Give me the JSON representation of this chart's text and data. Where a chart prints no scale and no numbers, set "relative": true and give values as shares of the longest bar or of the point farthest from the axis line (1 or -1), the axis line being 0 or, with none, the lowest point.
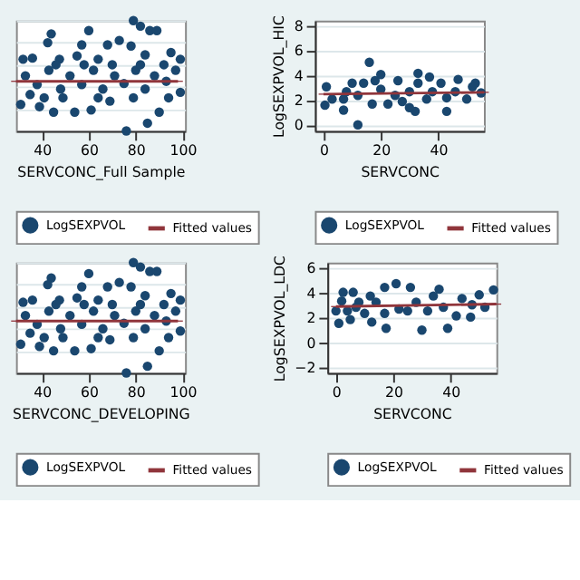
{
  "chart_data": [
    {
      "type": "scatter",
      "xlabel": "SERVCONC_Full Sample",
      "relative": true,
      "xlim": [
        29,
        101
      ],
      "xticks": [
        40,
        60,
        80,
        100
      ],
      "tick_labels": "x",
      "grid": "y",
      "legend": "bottom",
      "series": [
        {
          "name": "LogSEXPVOL",
          "color": "#1a476f",
          "marker": "circle",
          "x": [
            79,
            82,
            86,
            89,
            60,
            44,
            42.5,
            57,
            68,
            73,
            78,
            95,
            99,
            55,
            64,
            32,
            36,
            47.5,
            84,
            92,
            54,
            45,
            39,
            76,
            85,
            90,
            61,
            69,
            31,
            99,
            79,
            49,
            33,
            38,
            43,
            48,
            52,
            57,
            62,
            66,
            71,
            75,
            80,
            84,
            88,
            93,
            97,
            35,
            46,
            58,
            70,
            82,
            94,
            64,
            41
          ],
          "values": [
            1.0,
            0.95,
            0.91,
            0.91,
            0.91,
            0.88,
            0.8,
            0.78,
            0.78,
            0.82,
            0.77,
            0.71,
            0.65,
            0.68,
            0.65,
            0.65,
            0.66,
            0.65,
            0.69,
            0.6,
            0.17,
            0.17,
            0.22,
            0,
            0.07,
            0.17,
            0.19,
            0.27,
            0.24,
            0.35,
            0.3,
            0.3,
            0.5,
            0.42,
            0.55,
            0.38,
            0.5,
            0.42,
            0.55,
            0.38,
            0.5,
            0.43,
            0.55,
            0.38,
            0.5,
            0.45,
            0.55,
            0.33,
            0.6,
            0.6,
            0.6,
            0.6,
            0.3,
            0.3,
            0.3
          ]
        },
        {
          "name": "Fitted values",
          "type": "line",
          "color": "#90353b",
          "x": [
            29,
            98
          ],
          "values": [
            0.45,
            0.45
          ]
        }
      ]
    },
    {
      "type": "scatter",
      "xlabel": "SERVCONC",
      "ylabel": "LogSEXPVOL_HIC",
      "xlim": [
        -3,
        56
      ],
      "xticks": [
        0,
        20,
        40
      ],
      "ylim": [
        -0.5,
        8.5
      ],
      "yticks": [
        0,
        2,
        4,
        6,
        8
      ],
      "grid": "y",
      "legend": "bottom",
      "series": [
        {
          "name": "LogSEXPVOL",
          "color": "#1a476f",
          "marker": "circle",
          "x": [
            16,
            20,
            33,
            37,
            26,
            12,
            1,
            0.5,
            7,
            32,
            43,
            47,
            53,
            55,
            3,
            8,
            12,
            14,
            17,
            20,
            22.5,
            25,
            27.5,
            30,
            33,
            36,
            38,
            41,
            43,
            46,
            50,
            52,
            7,
            10,
            18,
            30
          ],
          "values": [
            5.1,
            4.1,
            4.2,
            3.9,
            3.6,
            0,
            3.1,
            1.6,
            1.2,
            1.1,
            1.1,
            3.7,
            3.4,
            2.6,
            2.1,
            2.7,
            2.4,
            3.4,
            1.7,
            2.9,
            1.7,
            2.4,
            1.9,
            2.7,
            3.4,
            2.1,
            2.7,
            3.4,
            2.2,
            2.7,
            2.1,
            3.1,
            2.1,
            3.4,
            3.6,
            1.4
          ]
        },
        {
          "name": "Fitted values",
          "type": "line",
          "color": "#90353b",
          "x": [
            0,
            56
          ],
          "values": [
            2.5,
            2.65
          ]
        }
      ]
    },
    {
      "type": "scatter",
      "xlabel": "SERVCONC_DEVELOPING",
      "relative": true,
      "xlim": [
        29,
        101
      ],
      "xticks": [
        40,
        60,
        80,
        100
      ],
      "tick_labels": "x",
      "grid": "y",
      "legend": "bottom",
      "series": [
        {
          "name": "LogSEXPVOL",
          "color": "#1a476f",
          "marker": "circle",
          "x": [
            79,
            82,
            86,
            89,
            60,
            44,
            42.5,
            57,
            68,
            73,
            78,
            95,
            99,
            55,
            64,
            32,
            36,
            47.5,
            84,
            92,
            54,
            45,
            39,
            76,
            85,
            90,
            61,
            69,
            31,
            99,
            79,
            49,
            33,
            38,
            43,
            48,
            52,
            57,
            62,
            66,
            71,
            75,
            80,
            84,
            88,
            93,
            97,
            35,
            46,
            58,
            70,
            82,
            94,
            64,
            41
          ],
          "values": [
            1.0,
            0.96,
            0.92,
            0.92,
            0.9,
            0.86,
            0.8,
            0.78,
            0.78,
            0.82,
            0.78,
            0.72,
            0.66,
            0.68,
            0.66,
            0.64,
            0.66,
            0.66,
            0.7,
            0.62,
            0.2,
            0.2,
            0.24,
            0,
            0.06,
            0.2,
            0.22,
            0.3,
            0.26,
            0.38,
            0.32,
            0.32,
            0.52,
            0.44,
            0.56,
            0.4,
            0.52,
            0.44,
            0.56,
            0.4,
            0.52,
            0.45,
            0.56,
            0.4,
            0.52,
            0.47,
            0.56,
            0.36,
            0.62,
            0.62,
            0.62,
            0.62,
            0.32,
            0.32,
            0.32
          ]
        },
        {
          "name": "Fitted values",
          "type": "line",
          "color": "#90353b",
          "x": [
            29,
            98
          ],
          "values": [
            0.47,
            0.47
          ]
        }
      ]
    },
    {
      "type": "scatter",
      "xlabel": "SERVCONC",
      "ylabel": "LogSEXPVOL_LDC",
      "xlim": [
        -3,
        56
      ],
      "xticks": [
        0,
        20,
        40
      ],
      "ylim": [
        -2.4,
        6.5
      ],
      "yticks": [
        -2,
        0,
        2,
        4,
        6
      ],
      "grid": "y",
      "legend": "bottom",
      "series": [
        {
          "name": "LogSEXPVOL",
          "color": "#1a476f",
          "marker": "circle",
          "x": [
            21,
            17,
            26,
            36,
            2.5,
            6,
            1,
            17.5,
            30,
            39,
            47,
            50,
            55,
            0,
            4,
            8,
            12,
            14,
            5,
            10,
            12.5,
            17,
            22,
            25,
            28,
            32,
            34,
            37.5,
            42,
            44,
            47.5,
            52,
            2,
            7
          ],
          "values": [
            4.8,
            4.5,
            4.5,
            4.35,
            4.1,
            4.1,
            1.6,
            1.2,
            1.05,
            1.2,
            2.1,
            3.9,
            4.3,
            2.6,
            2.6,
            3.3,
            3.8,
            3.3,
            1.9,
            2.4,
            1.7,
            2.4,
            2.75,
            2.6,
            3.3,
            2.6,
            3.8,
            2.9,
            2.2,
            3.6,
            3.1,
            2.9,
            3.4,
            2.9
          ]
        },
        {
          "name": "Fitted values",
          "type": "line",
          "color": "#90353b",
          "x": [
            0,
            56
          ],
          "values": [
            2.95,
            3.15
          ]
        }
      ]
    }
  ]
}
